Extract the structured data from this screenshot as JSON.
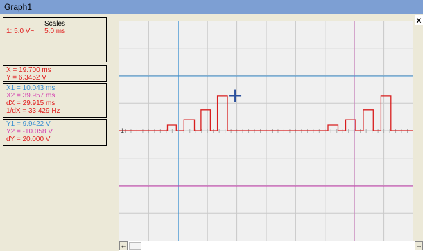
{
  "window": {
    "title": "Graph1",
    "close_label": "x"
  },
  "scales": {
    "header": "Scales",
    "channel": "1:",
    "volts": "5.0 V~",
    "time": "5.0 ms"
  },
  "cursor_readout": {
    "x": "X = 19.700 ms",
    "y": "Y = 6.3452 V"
  },
  "x_cursors": {
    "x1": "X1 = 10.043 ms",
    "x2": "X2 = 39.957 ms",
    "dx": "dX = 29.915 ms",
    "inv_dx": "1/dX = 33.429 Hz"
  },
  "y_cursors": {
    "y1": "Y1 = 9.9422 V",
    "y2": "Y2 = -10.058 V",
    "dy": "dY = 20.000 V"
  },
  "trace_marker": "1",
  "colors": {
    "trace": "#d81e1e",
    "cursor_x1": "#3a8fd0",
    "cursor_x2": "#c83cb0",
    "grid": "#c9c9c9",
    "plot_bg": "#f0f0f0"
  },
  "chart_data": {
    "type": "line",
    "x_range_ms": [
      0,
      50
    ],
    "y_range_v": [
      -20,
      20
    ],
    "x_divisions": 10,
    "y_divisions": 8,
    "grid": true,
    "series": [
      {
        "points_ms_v": [
          [
            0,
            0
          ],
          [
            8.2,
            0
          ],
          [
            8.2,
            1
          ],
          [
            9.7,
            1
          ],
          [
            9.7,
            0
          ],
          [
            11,
            0
          ],
          [
            11,
            2
          ],
          [
            12.8,
            2
          ],
          [
            12.8,
            0
          ],
          [
            13.9,
            0
          ],
          [
            13.9,
            3.8
          ],
          [
            15.5,
            3.8
          ],
          [
            15.5,
            0
          ],
          [
            16.7,
            0
          ],
          [
            16.7,
            6.3
          ],
          [
            18.4,
            6.3
          ],
          [
            18.4,
            0
          ],
          [
            35.5,
            0
          ],
          [
            35.5,
            1
          ],
          [
            37.2,
            1
          ],
          [
            37.2,
            0
          ],
          [
            38.5,
            0
          ],
          [
            38.5,
            2
          ],
          [
            40.2,
            2
          ],
          [
            40.2,
            0
          ],
          [
            41.5,
            0
          ],
          [
            41.5,
            3.8
          ],
          [
            43.2,
            3.8
          ],
          [
            43.2,
            0
          ],
          [
            44.5,
            0
          ],
          [
            44.5,
            6.3
          ],
          [
            46.2,
            6.3
          ],
          [
            46.2,
            0
          ],
          [
            50,
            0
          ]
        ]
      }
    ],
    "cursors": {
      "x1_ms": 10.043,
      "x2_ms": 39.957,
      "y1_v": 9.9422,
      "y2_v": -10.058,
      "marker_ms": 19.7,
      "marker_v": 6.3452
    }
  }
}
